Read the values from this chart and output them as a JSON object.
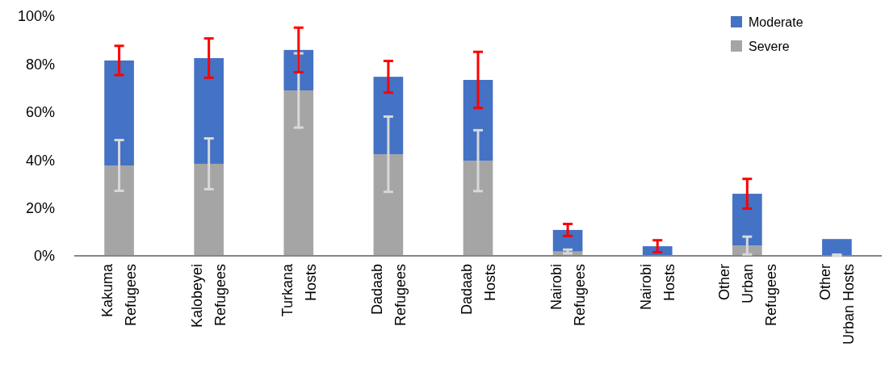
{
  "chart_data": {
    "type": "bar",
    "stacked": true,
    "categories": [
      "Kakuma\nRefugees",
      "Kalobeyei\nRefugees",
      "Turkana\nHosts",
      "Dadaab\nRefugees",
      "Dadaab\nHosts",
      "Nairobi\nRefugees",
      "Nairobi\nHosts",
      "Other\nUrban\nRefugees",
      "Other\nUrban Hosts"
    ],
    "series": [
      {
        "name": "Severe",
        "color": "#a5a5a5",
        "values": [
          37.7,
          38.4,
          69.0,
          42.4,
          39.7,
          1.8,
          0,
          4.3,
          0
        ],
        "errors": [
          10.6,
          10.6,
          15.5,
          15.7,
          12.7,
          0.8,
          null,
          3.7,
          [
            0,
            0.5
          ]
        ]
      },
      {
        "name": "Moderate",
        "color": "#4472c4",
        "values": [
          43.8,
          44.1,
          16.9,
          32.3,
          33.7,
          9.0,
          4.0,
          21.6,
          7.0
        ],
        "errors": [
          6.1,
          8.2,
          9.3,
          6.6,
          11.7,
          2.5,
          2.5,
          6.2,
          null
        ]
      }
    ],
    "ylim": [
      0,
      100
    ],
    "yticks": [
      {
        "value": 0,
        "label": "0%"
      },
      {
        "value": 20,
        "label": "20%"
      },
      {
        "value": 40,
        "label": "40%"
      },
      {
        "value": 60,
        "label": "60%"
      },
      {
        "value": 80,
        "label": "80%"
      },
      {
        "value": 100,
        "label": "100%"
      }
    ],
    "legend": "top right",
    "grid": false
  }
}
